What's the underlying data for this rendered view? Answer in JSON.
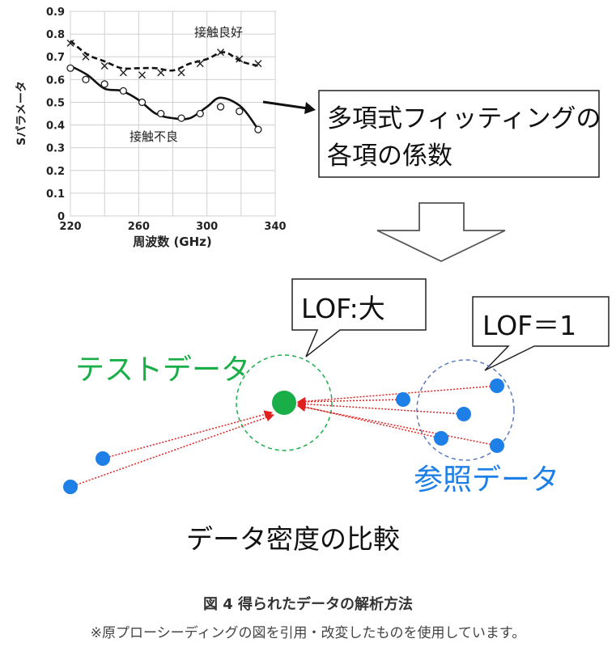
{
  "chart_data": {
    "type": "line",
    "xlabel": "周波数 (GHz)",
    "ylabel": "Sパラメータ",
    "xlim": [
      220,
      340
    ],
    "ylim": [
      0,
      0.9
    ],
    "x_ticks": [
      "220",
      "260",
      "300",
      "340"
    ],
    "y_ticks": [
      "0",
      "0.1",
      "0.2",
      "0.3",
      "0.4",
      "0.5",
      "0.6",
      "0.7",
      "0.8",
      "0.9"
    ],
    "grid": true,
    "series": [
      {
        "name": "接触良好",
        "marker": "x",
        "line": "dashed",
        "points": [
          [
            220,
            0.76
          ],
          [
            229,
            0.7
          ],
          [
            240,
            0.66
          ],
          [
            251,
            0.63
          ],
          [
            262,
            0.62
          ],
          [
            273,
            0.63
          ],
          [
            285,
            0.63
          ],
          [
            296,
            0.67
          ],
          [
            308,
            0.72
          ],
          [
            319,
            0.69
          ],
          [
            330,
            0.67
          ]
        ],
        "curve": [
          [
            220,
            0.77
          ],
          [
            230,
            0.71
          ],
          [
            240,
            0.68
          ],
          [
            250,
            0.65
          ],
          [
            260,
            0.65
          ],
          [
            270,
            0.65
          ],
          [
            280,
            0.64
          ],
          [
            290,
            0.67
          ],
          [
            300,
            0.69
          ],
          [
            310,
            0.72
          ],
          [
            320,
            0.68
          ],
          [
            330,
            0.66
          ]
        ]
      },
      {
        "name": "接触不良",
        "marker": "o",
        "line": "solid",
        "points": [
          [
            220,
            0.65
          ],
          [
            229,
            0.6
          ],
          [
            240,
            0.58
          ],
          [
            251,
            0.55
          ],
          [
            262,
            0.5
          ],
          [
            273,
            0.45
          ],
          [
            285,
            0.43
          ],
          [
            296,
            0.45
          ],
          [
            308,
            0.48
          ],
          [
            319,
            0.46
          ],
          [
            330,
            0.38
          ]
        ],
        "curve": [
          [
            220,
            0.66
          ],
          [
            230,
            0.62
          ],
          [
            240,
            0.56
          ],
          [
            250,
            0.55
          ],
          [
            260,
            0.51
          ],
          [
            270,
            0.45
          ],
          [
            280,
            0.43
          ],
          [
            290,
            0.43
          ],
          [
            300,
            0.48
          ],
          [
            308,
            0.52
          ],
          [
            320,
            0.48
          ],
          [
            330,
            0.38
          ]
        ]
      }
    ]
  },
  "diagram": {
    "coef_box_text": [
      "多項式フィッティングの",
      "各項の係数"
    ],
    "callout_test": "LOF:大",
    "callout_ref": "LOF＝1",
    "label_test": "テストデータ",
    "label_ref": "参照データ",
    "density_title": "データ密度の比較",
    "colors": {
      "test": "#1aae49",
      "ref": "#1e7fe6",
      "arrow": "#e02020",
      "ref_circle": "#5a7bbd"
    }
  },
  "figure_caption": "図 4  得られたデータの解析方法",
  "note": "※原プローシーディングの図を引用・改変したものを使用しています。"
}
